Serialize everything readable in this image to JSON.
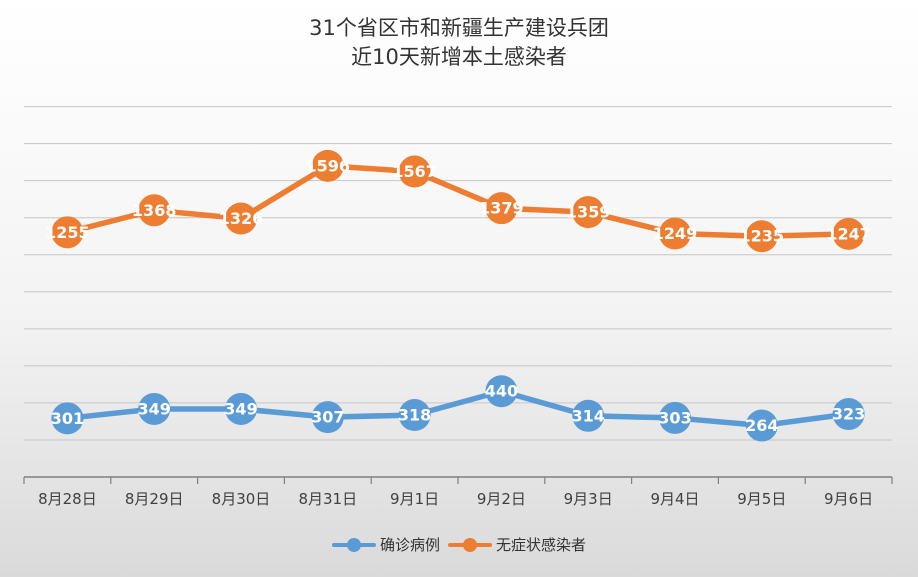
{
  "chart_data": {
    "type": "line",
    "title": [
      "31个省区市和新疆生产建设兵团",
      "近10天新增本土感染者"
    ],
    "categories": [
      "8月28日",
      "8月29日",
      "8月30日",
      "8月31日",
      "9月1日",
      "9月2日",
      "9月3日",
      "9月4日",
      "9月5日",
      "9月6日"
    ],
    "series": [
      {
        "name": "确诊病例",
        "color": "#5b9bd5",
        "values": [
          301,
          349,
          349,
          307,
          318,
          440,
          314,
          303,
          264,
          323
        ]
      },
      {
        "name": "无症状感染者",
        "color": "#ed7d31",
        "values": [
          1255,
          1368,
          1326,
          1596,
          1567,
          1379,
          1359,
          1249,
          1235,
          1247
        ]
      }
    ],
    "ylim": [
      0,
      1900
    ],
    "y_gridlines": 10,
    "grid": true,
    "y_axis_labels": false,
    "legend_position": "bottom",
    "data_labels": true
  }
}
